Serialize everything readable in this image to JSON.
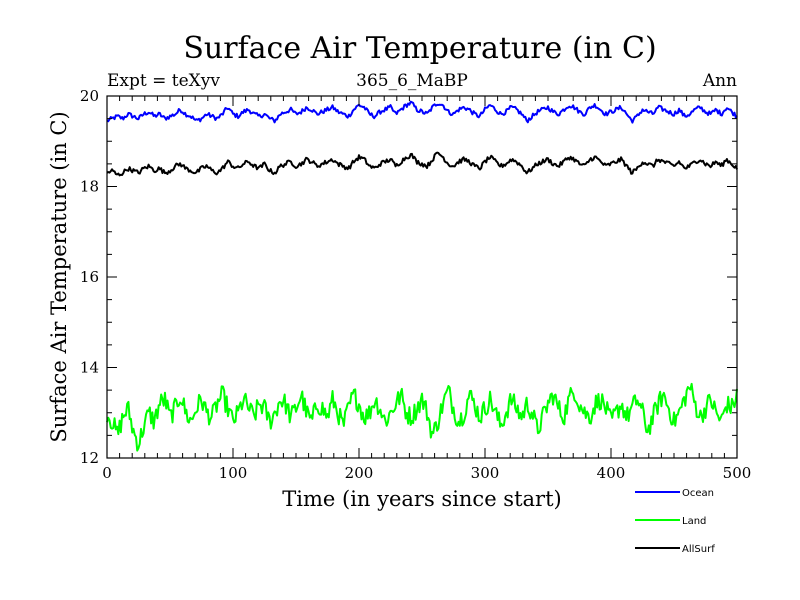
{
  "chart_data": {
    "type": "line",
    "title": "Surface Air Temperature (in C)",
    "subtitle_left": "Expt = teXyv",
    "subtitle_center": "365_6_MaBP",
    "subtitle_right": "Ann",
    "xlabel": "Time (in years since start)",
    "ylabel": "Surface Air Temperature (in C)",
    "xlim": [
      0,
      500
    ],
    "ylim": [
      12,
      20
    ],
    "x_ticks": [
      0,
      100,
      200,
      300,
      400,
      500
    ],
    "y_ticks": [
      12,
      14,
      16,
      18,
      20
    ],
    "x_tick_labels": [
      "0",
      "100",
      "200",
      "300",
      "400",
      "500"
    ],
    "y_tick_labels": [
      "12",
      "14",
      "16",
      "18",
      "20"
    ],
    "grid": false,
    "legend_position": "below-right",
    "x_step_years": 1,
    "series": [
      {
        "name": "Ocean",
        "color": "#0000ff",
        "mean": 19.65,
        "values": [
          19.45,
          19.5,
          19.55,
          19.5,
          19.6,
          19.55,
          19.5,
          19.6,
          19.65,
          19.55,
          19.6,
          19.5,
          19.55,
          19.6,
          19.7,
          19.6,
          19.55,
          19.45,
          19.5,
          19.6,
          19.55,
          19.5,
          19.6,
          19.75,
          19.6,
          19.55,
          19.65,
          19.7,
          19.6,
          19.55,
          19.6,
          19.5,
          19.45,
          19.6,
          19.65,
          19.7,
          19.6,
          19.65,
          19.75,
          19.7,
          19.6,
          19.65,
          19.7,
          19.75,
          19.65,
          19.6,
          19.55,
          19.7,
          19.8,
          19.75,
          19.6,
          19.55,
          19.65,
          19.7,
          19.75,
          19.6,
          19.7,
          19.8,
          19.85,
          19.7,
          19.65,
          19.6,
          19.75,
          19.85,
          19.8,
          19.65,
          19.6,
          19.7,
          19.75,
          19.7,
          19.6,
          19.55,
          19.7,
          19.8,
          19.7,
          19.6,
          19.65,
          19.75,
          19.7,
          19.6,
          19.45,
          19.55,
          19.65,
          19.7,
          19.75,
          19.65,
          19.6,
          19.7,
          19.8,
          19.75,
          19.65,
          19.6,
          19.75,
          19.8,
          19.7,
          19.6,
          19.65,
          19.7,
          19.75,
          19.6,
          19.45,
          19.55,
          19.7,
          19.65,
          19.6,
          19.75,
          19.7,
          19.65,
          19.6,
          19.7,
          19.55,
          19.6,
          19.7,
          19.75,
          19.65,
          19.6,
          19.7,
          19.6,
          19.75,
          19.65,
          19.55
        ]
      },
      {
        "name": "Land",
        "color": "#00ff00",
        "mean": 13.0,
        "values": [
          13.0,
          12.8,
          12.5,
          12.9,
          13.1,
          12.6,
          12.3,
          12.7,
          13.0,
          12.8,
          13.2,
          13.3,
          12.9,
          13.1,
          13.4,
          13.0,
          12.8,
          13.1,
          13.3,
          13.0,
          12.9,
          13.2,
          13.4,
          13.1,
          12.8,
          13.0,
          13.3,
          13.1,
          12.9,
          13.2,
          13.1,
          12.8,
          13.0,
          13.3,
          13.2,
          12.9,
          13.1,
          13.4,
          13.0,
          12.8,
          13.2,
          13.1,
          12.9,
          13.3,
          13.0,
          12.7,
          13.1,
          13.4,
          13.2,
          12.9,
          13.0,
          13.3,
          13.1,
          12.8,
          13.0,
          13.2,
          13.4,
          13.0,
          12.9,
          13.1,
          13.3,
          13.0,
          12.5,
          12.8,
          13.2,
          13.5,
          13.1,
          12.8,
          13.0,
          13.4,
          13.2,
          12.9,
          13.1,
          13.3,
          13.0,
          12.7,
          13.0,
          13.3,
          13.1,
          12.9,
          13.2,
          13.0,
          12.6,
          12.9,
          13.2,
          13.4,
          13.1,
          12.9,
          13.3,
          13.5,
          13.2,
          13.0,
          12.9,
          13.2,
          13.3,
          13.1,
          12.8,
          13.0,
          13.2,
          12.9,
          13.1,
          13.3,
          13.0,
          12.6,
          12.9,
          13.2,
          13.4,
          13.1,
          12.8,
          13.0,
          13.3,
          13.6,
          13.2,
          12.9,
          13.1,
          13.3,
          13.0,
          12.8,
          13.2,
          13.1,
          13.4
        ]
      },
      {
        "name": "AllSurf",
        "color": "#000000",
        "mean": 18.5,
        "values": [
          18.3,
          18.35,
          18.25,
          18.3,
          18.4,
          18.35,
          18.3,
          18.4,
          18.45,
          18.35,
          18.4,
          18.3,
          18.35,
          18.45,
          18.5,
          18.4,
          18.35,
          18.3,
          18.4,
          18.45,
          18.35,
          18.3,
          18.4,
          18.55,
          18.45,
          18.4,
          18.5,
          18.55,
          18.45,
          18.4,
          18.5,
          18.35,
          18.3,
          18.45,
          18.5,
          18.55,
          18.45,
          18.5,
          18.6,
          18.55,
          18.45,
          18.5,
          18.55,
          18.6,
          18.5,
          18.45,
          18.4,
          18.55,
          18.65,
          18.6,
          18.45,
          18.4,
          18.5,
          18.55,
          18.6,
          18.45,
          18.55,
          18.65,
          18.7,
          18.55,
          18.5,
          18.45,
          18.6,
          18.75,
          18.65,
          18.5,
          18.45,
          18.55,
          18.6,
          18.55,
          18.45,
          18.4,
          18.55,
          18.65,
          18.55,
          18.45,
          18.5,
          18.6,
          18.55,
          18.45,
          18.3,
          18.4,
          18.5,
          18.55,
          18.6,
          18.5,
          18.45,
          18.55,
          18.65,
          18.6,
          18.5,
          18.45,
          18.6,
          18.65,
          18.55,
          18.45,
          18.5,
          18.55,
          18.6,
          18.45,
          18.3,
          18.4,
          18.55,
          18.5,
          18.45,
          18.6,
          18.55,
          18.5,
          18.45,
          18.55,
          18.4,
          18.45,
          18.55,
          18.6,
          18.5,
          18.45,
          18.55,
          18.45,
          18.6,
          18.5,
          18.4
        ]
      }
    ]
  }
}
